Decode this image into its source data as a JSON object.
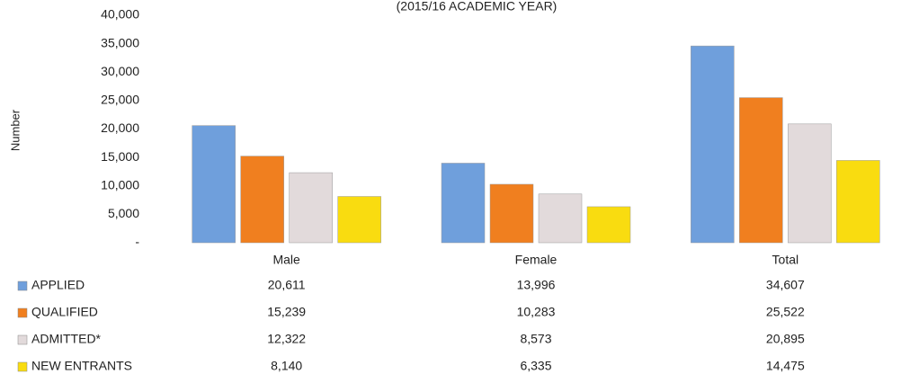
{
  "chart_data": {
    "type": "bar",
    "title": "(2015/16 ACADEMIC YEAR)",
    "y_label": "Number",
    "categories": [
      "Male",
      "Female",
      "Total"
    ],
    "series": [
      {
        "name": "APPLIED",
        "color": "#6f9fdc",
        "values": [
          20611,
          13996,
          34607
        ],
        "value_labels": [
          "20,611",
          "13,996",
          "34,607"
        ]
      },
      {
        "name": "QUALIFIED",
        "color": "#f07f1f",
        "values": [
          15239,
          10283,
          25522
        ],
        "value_labels": [
          "15,239",
          "10,283",
          "25,522"
        ]
      },
      {
        "name": "ADMITTED*",
        "color": "#e2dadb",
        "values": [
          12322,
          8573,
          20895
        ],
        "value_labels": [
          "12,322",
          "8,573",
          "20,895"
        ]
      },
      {
        "name": "NEW ENTRANTS",
        "color": "#f9dc10",
        "values": [
          8140,
          6335,
          14475
        ],
        "value_labels": [
          "8,140",
          "6,335",
          "14,475"
        ]
      }
    ],
    "ylim": [
      0,
      40000
    ],
    "yticks": [
      {
        "value": 0,
        "label": "-"
      },
      {
        "value": 5000,
        "label": "5,000"
      },
      {
        "value": 10000,
        "label": "10,000"
      },
      {
        "value": 15000,
        "label": "15,000"
      },
      {
        "value": 20000,
        "label": "20,000"
      },
      {
        "value": 25000,
        "label": "25,000"
      },
      {
        "value": 30000,
        "label": "30,000"
      },
      {
        "value": 35000,
        "label": "35,000"
      },
      {
        "value": 40000,
        "label": "40,000"
      }
    ]
  }
}
